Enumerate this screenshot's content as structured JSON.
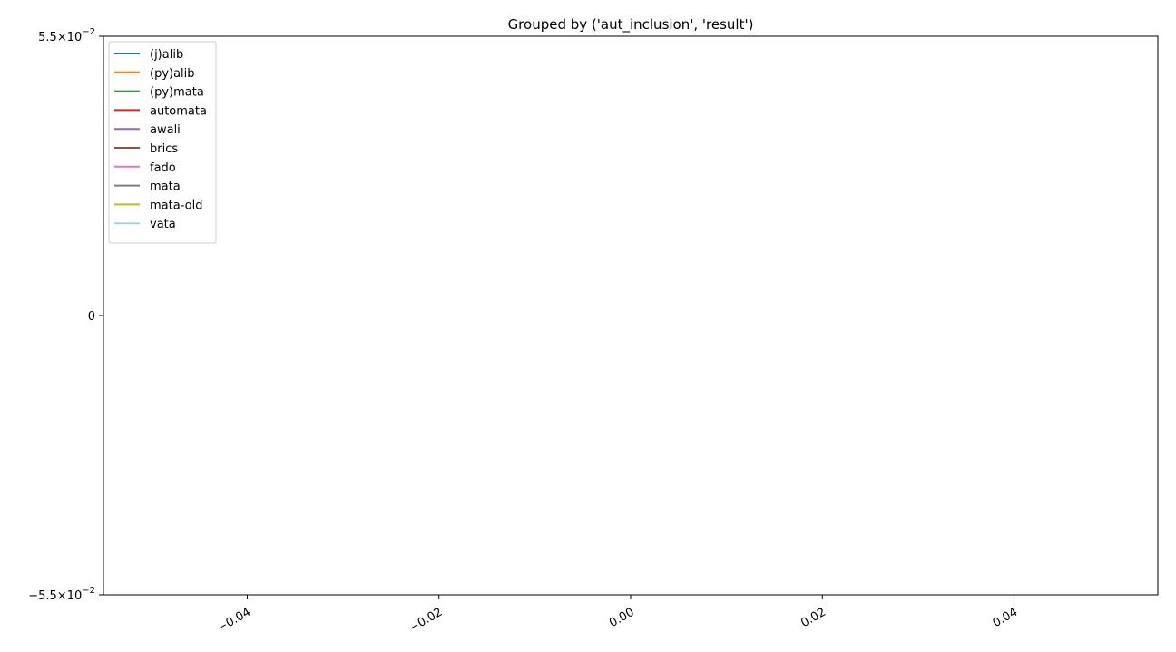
{
  "chart_data": {
    "type": "line",
    "title": "Grouped by ('aut_inclusion', 'result')",
    "xlabel": "",
    "ylabel": "",
    "xlim": [
      -0.055,
      0.055
    ],
    "ylim": [
      -0.055,
      0.055
    ],
    "y_scale": "symlog",
    "x_ticks": [
      {
        "value": -0.04,
        "label": "−0.04"
      },
      {
        "value": -0.02,
        "label": "−0.02"
      },
      {
        "value": 0.0,
        "label": "0.00"
      },
      {
        "value": 0.02,
        "label": "0.02"
      },
      {
        "value": 0.04,
        "label": "0.04"
      }
    ],
    "y_ticks": [
      {
        "value": 0.055,
        "mantissa": "5.5",
        "exponent": "−2",
        "label_sign": ""
      },
      {
        "value": 0,
        "label": "0"
      },
      {
        "value": -0.055,
        "mantissa": "5.5",
        "exponent": "−2",
        "label_sign": "−"
      }
    ],
    "grid": false,
    "legend_position": "top-left",
    "series": [
      {
        "name": "(j)alib",
        "color": "#1f77b4",
        "values": []
      },
      {
        "name": "(py)alib",
        "color": "#ff7f0e",
        "values": []
      },
      {
        "name": "(py)mata",
        "color": "#2ca02c",
        "values": []
      },
      {
        "name": "automata",
        "color": "#d62728",
        "values": []
      },
      {
        "name": "awali",
        "color": "#9467bd",
        "values": []
      },
      {
        "name": "brics",
        "color": "#8c564b",
        "values": []
      },
      {
        "name": "fado",
        "color": "#e377c2",
        "values": []
      },
      {
        "name": "mata",
        "color": "#7f7f7f",
        "values": []
      },
      {
        "name": "mata-old",
        "color": "#bcbd22",
        "values": []
      },
      {
        "name": "vata",
        "color": "#9edae5",
        "values": []
      }
    ]
  }
}
